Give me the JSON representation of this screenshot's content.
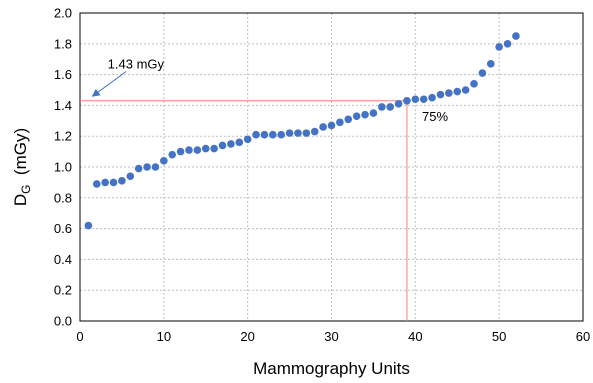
{
  "chart_data": {
    "type": "scatter",
    "title": "",
    "xlabel": "Mammography Units",
    "ylabel": {
      "main": "D",
      "sub": "G",
      "rest": "  (mGy)"
    },
    "xlim": [
      0,
      60
    ],
    "ylim": [
      0,
      2.0
    ],
    "xticks": [
      "0",
      "10",
      "20",
      "30",
      "40",
      "50",
      "60"
    ],
    "yticks": [
      "0.0",
      "0.2",
      "0.4",
      "0.6",
      "0.8",
      "1.0",
      "1.2",
      "1.4",
      "1.6",
      "1.8",
      "2.0"
    ],
    "grid": true,
    "legend": "none",
    "colors": {
      "points": "#4472c4",
      "reference": "#f08080",
      "arrow": "#4472c4"
    },
    "reference_value": 1.43,
    "reference_unit_x": 39,
    "annotations": {
      "arrow_label": "1.43 mGy",
      "percent_label": "75%"
    },
    "series": [
      {
        "x": [
          1,
          2,
          3,
          4,
          5,
          6,
          7,
          8,
          9,
          10,
          11,
          12,
          13,
          14,
          15,
          16,
          17,
          18,
          19,
          20,
          21,
          22,
          23,
          24,
          25,
          26,
          27,
          28,
          29,
          30,
          31,
          32,
          33,
          34,
          35,
          36,
          37,
          38,
          39,
          40,
          41,
          42,
          43,
          44,
          45,
          46,
          47,
          48,
          49,
          50,
          51,
          52
        ],
        "y": [
          0.62,
          0.89,
          0.9,
          0.9,
          0.91,
          0.94,
          0.99,
          1.0,
          1.0,
          1.04,
          1.08,
          1.1,
          1.11,
          1.11,
          1.12,
          1.12,
          1.14,
          1.15,
          1.16,
          1.18,
          1.21,
          1.21,
          1.21,
          1.21,
          1.22,
          1.22,
          1.22,
          1.23,
          1.26,
          1.27,
          1.29,
          1.31,
          1.33,
          1.34,
          1.35,
          1.39,
          1.39,
          1.41,
          1.43,
          1.44,
          1.44,
          1.45,
          1.47,
          1.48,
          1.49,
          1.5,
          1.54,
          1.61,
          1.67,
          1.78,
          1.8,
          1.85
        ]
      }
    ]
  }
}
